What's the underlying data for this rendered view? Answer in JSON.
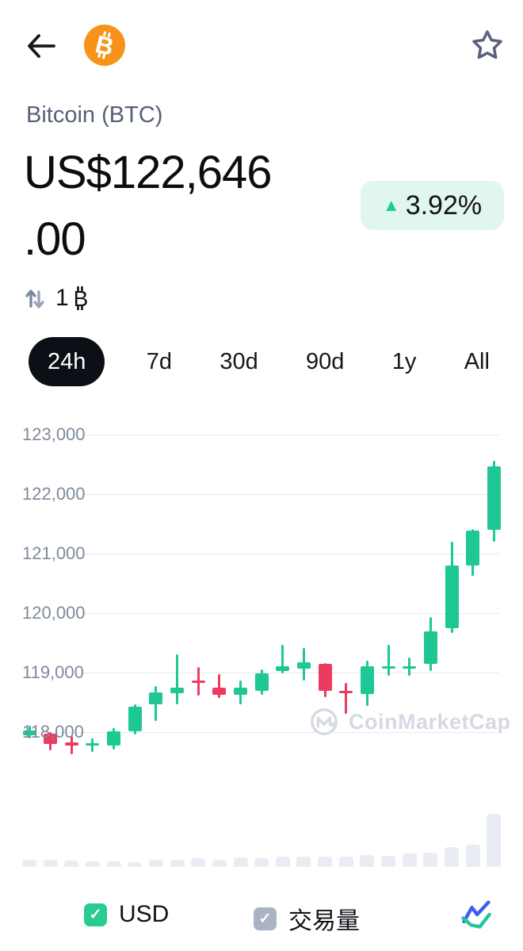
{
  "header": {
    "back_icon": "left-arrow",
    "coin_logo": "bitcoin-logo",
    "favorite_icon": "star-outline",
    "logo_color": "#f7931a"
  },
  "coin": {
    "name": "Bitcoin (BTC)",
    "price_full": "US$122,646.00",
    "price_line1": "US$122,646",
    "price_line2": ".00",
    "change_percent": "3.92%",
    "change_direction": "up",
    "change_up_symbol": "▲",
    "convert_amount": "1",
    "convert_unit": "BTC"
  },
  "tabs": [
    {
      "label": "24h",
      "active": true
    },
    {
      "label": "7d",
      "active": false
    },
    {
      "label": "30d",
      "active": false
    },
    {
      "label": "90d",
      "active": false
    },
    {
      "label": "1y",
      "active": false
    },
    {
      "label": "All",
      "active": false
    }
  ],
  "chart_data": {
    "type": "candlestick",
    "currency": "USD",
    "period": "24h",
    "watermark": "CoinMarketCap",
    "y_ticks": [
      123000,
      122000,
      121000,
      120000,
      119000,
      118000
    ],
    "y_tick_labels": [
      "123,000",
      "122,000",
      "121,000",
      "120,000",
      "119,000",
      "118,000"
    ],
    "ylim": [
      117500,
      123200
    ],
    "grid": true,
    "up_color": "#1ec895",
    "down_color": "#ec3b61",
    "candles": [
      {
        "open": 117940,
        "high": 118100,
        "low": 117890,
        "close": 118030
      },
      {
        "open": 117970,
        "high": 118000,
        "low": 117700,
        "close": 117800
      },
      {
        "open": 117830,
        "high": 117930,
        "low": 117630,
        "close": 117770
      },
      {
        "open": 117780,
        "high": 117890,
        "low": 117670,
        "close": 117810
      },
      {
        "open": 117770,
        "high": 118060,
        "low": 117710,
        "close": 118010
      },
      {
        "open": 118010,
        "high": 118470,
        "low": 117960,
        "close": 118430
      },
      {
        "open": 118460,
        "high": 118770,
        "low": 118190,
        "close": 118670
      },
      {
        "open": 118650,
        "high": 119300,
        "low": 118470,
        "close": 118750
      },
      {
        "open": 118870,
        "high": 119090,
        "low": 118610,
        "close": 118840
      },
      {
        "open": 118740,
        "high": 118970,
        "low": 118570,
        "close": 118630
      },
      {
        "open": 118630,
        "high": 118860,
        "low": 118460,
        "close": 118740
      },
      {
        "open": 118690,
        "high": 119050,
        "low": 118630,
        "close": 118990
      },
      {
        "open": 119020,
        "high": 119460,
        "low": 118990,
        "close": 119100
      },
      {
        "open": 119060,
        "high": 119410,
        "low": 118860,
        "close": 119170
      },
      {
        "open": 119150,
        "high": 119160,
        "low": 118590,
        "close": 118690
      },
      {
        "open": 118690,
        "high": 118830,
        "low": 118300,
        "close": 118670
      },
      {
        "open": 118640,
        "high": 119200,
        "low": 118440,
        "close": 119110
      },
      {
        "open": 119090,
        "high": 119460,
        "low": 118940,
        "close": 119110
      },
      {
        "open": 119090,
        "high": 119250,
        "low": 118940,
        "close": 119110
      },
      {
        "open": 119150,
        "high": 119930,
        "low": 119020,
        "close": 119690
      },
      {
        "open": 119740,
        "high": 121190,
        "low": 119670,
        "close": 120800
      },
      {
        "open": 120800,
        "high": 121410,
        "low": 120620,
        "close": 121380
      },
      {
        "open": 121390,
        "high": 122550,
        "low": 121190,
        "close": 122460
      }
    ],
    "volume_relative": [
      9,
      9,
      8,
      7,
      7,
      6,
      9,
      9,
      11,
      9,
      12,
      11,
      13,
      13,
      13,
      13,
      15,
      14,
      17,
      18,
      25,
      28,
      67
    ]
  },
  "footer": {
    "usd_toggle": {
      "label": "USD",
      "checked": true,
      "check_symbol": "✓",
      "color": "#2acb90"
    },
    "volume_toggle": {
      "label": "交易量",
      "checked": true,
      "check_symbol": "✓",
      "color": "#a9b3c4"
    },
    "chart_type_icon": "line-chart-toggle"
  },
  "colors": {
    "accent_green": "#1ec895",
    "accent_red": "#ec3b61",
    "badge_bg": "#e1f7ee",
    "grid_line": "#e6e8ee",
    "axis_label": "#7e8a9c",
    "watermark": "#d5d9e2",
    "volume_bar": "#e9edf3",
    "active_tab_bg": "#0c0f15"
  }
}
